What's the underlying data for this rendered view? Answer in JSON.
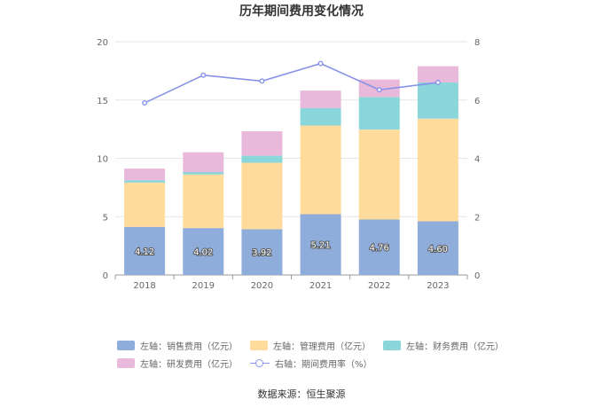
{
  "title": "历年期间费用变化情况",
  "source": "数据来源：恒生聚源",
  "chart_data": {
    "type": "bar",
    "stacked": true,
    "categories": [
      "2018",
      "2019",
      "2020",
      "2021",
      "2022",
      "2023"
    ],
    "left_axis": {
      "min": 0,
      "max": 20,
      "ticks": [
        "0",
        "5",
        "10",
        "15",
        "20"
      ]
    },
    "right_axis": {
      "min": 0,
      "max": 8,
      "ticks": [
        "0",
        "2",
        "4",
        "6",
        "8"
      ]
    },
    "series": [
      {
        "name": "左轴：销售费用（亿元）",
        "values": [
          4.12,
          4.02,
          3.92,
          5.21,
          4.76,
          4.6
        ],
        "labels": [
          "4.12",
          "4.02",
          "3.92",
          "5.21",
          "4.76",
          "4.60"
        ],
        "color": "#8eaddb"
      },
      {
        "name": "左轴：管理费用（亿元）",
        "values": [
          3.8,
          4.6,
          5.7,
          7.6,
          7.7,
          8.8
        ],
        "color": "#ffdb9c"
      },
      {
        "name": "左轴：财务费用（亿元）",
        "values": [
          0.2,
          0.2,
          0.6,
          1.5,
          2.8,
          3.1
        ],
        "color": "#8ad6db"
      },
      {
        "name": "左轴：研发费用（亿元）",
        "values": [
          1.0,
          1.7,
          2.1,
          1.5,
          1.5,
          1.4
        ],
        "color": "#e8b9da"
      },
      {
        "name": "右轴：期间费用率（%）",
        "axis": "right",
        "type": "line",
        "values": [
          5.9,
          6.85,
          6.65,
          7.25,
          6.35,
          6.6
        ],
        "color": "#8893e8"
      }
    ],
    "grid": true,
    "legend_position": "bottom"
  }
}
